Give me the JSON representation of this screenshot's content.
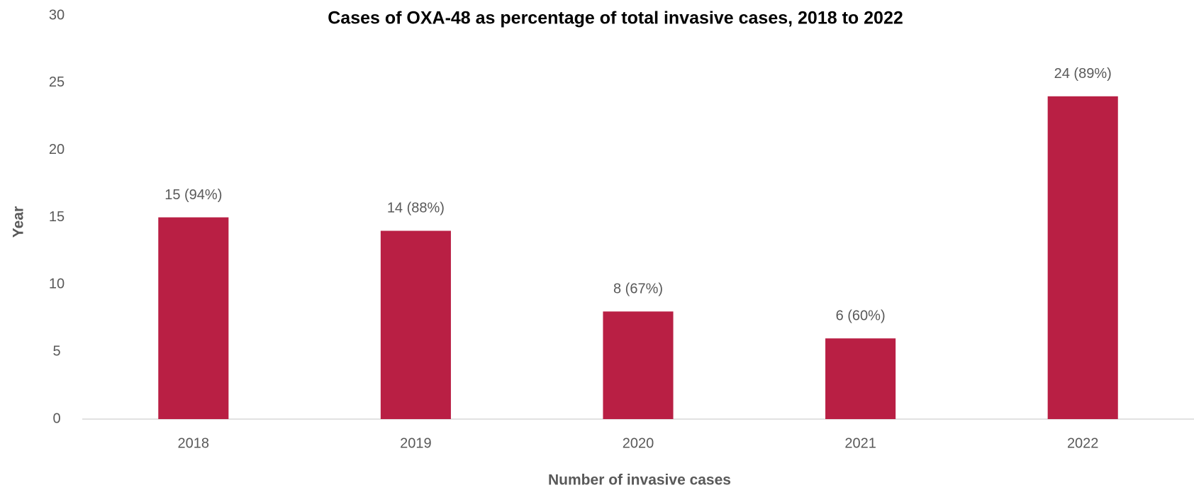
{
  "chart_data": {
    "type": "bar",
    "title": "Cases of OXA-48 as percentage of total invasive cases, 2018 to 2022",
    "x_label": "Number of invasive cases",
    "y_label": "Year",
    "categories": [
      "2018",
      "2019",
      "2020",
      "2021",
      "2022"
    ],
    "values": [
      15,
      14,
      8,
      6,
      24
    ],
    "value_labels": [
      "15 (94%)",
      "14 (88%)",
      "8 (67%)",
      "6 (60%)",
      "24 (89%)"
    ],
    "color": "#b91f44",
    "ylim": [
      0,
      30
    ],
    "yticks": [
      0,
      5,
      10,
      15,
      20,
      25,
      30
    ],
    "grid": false
  }
}
